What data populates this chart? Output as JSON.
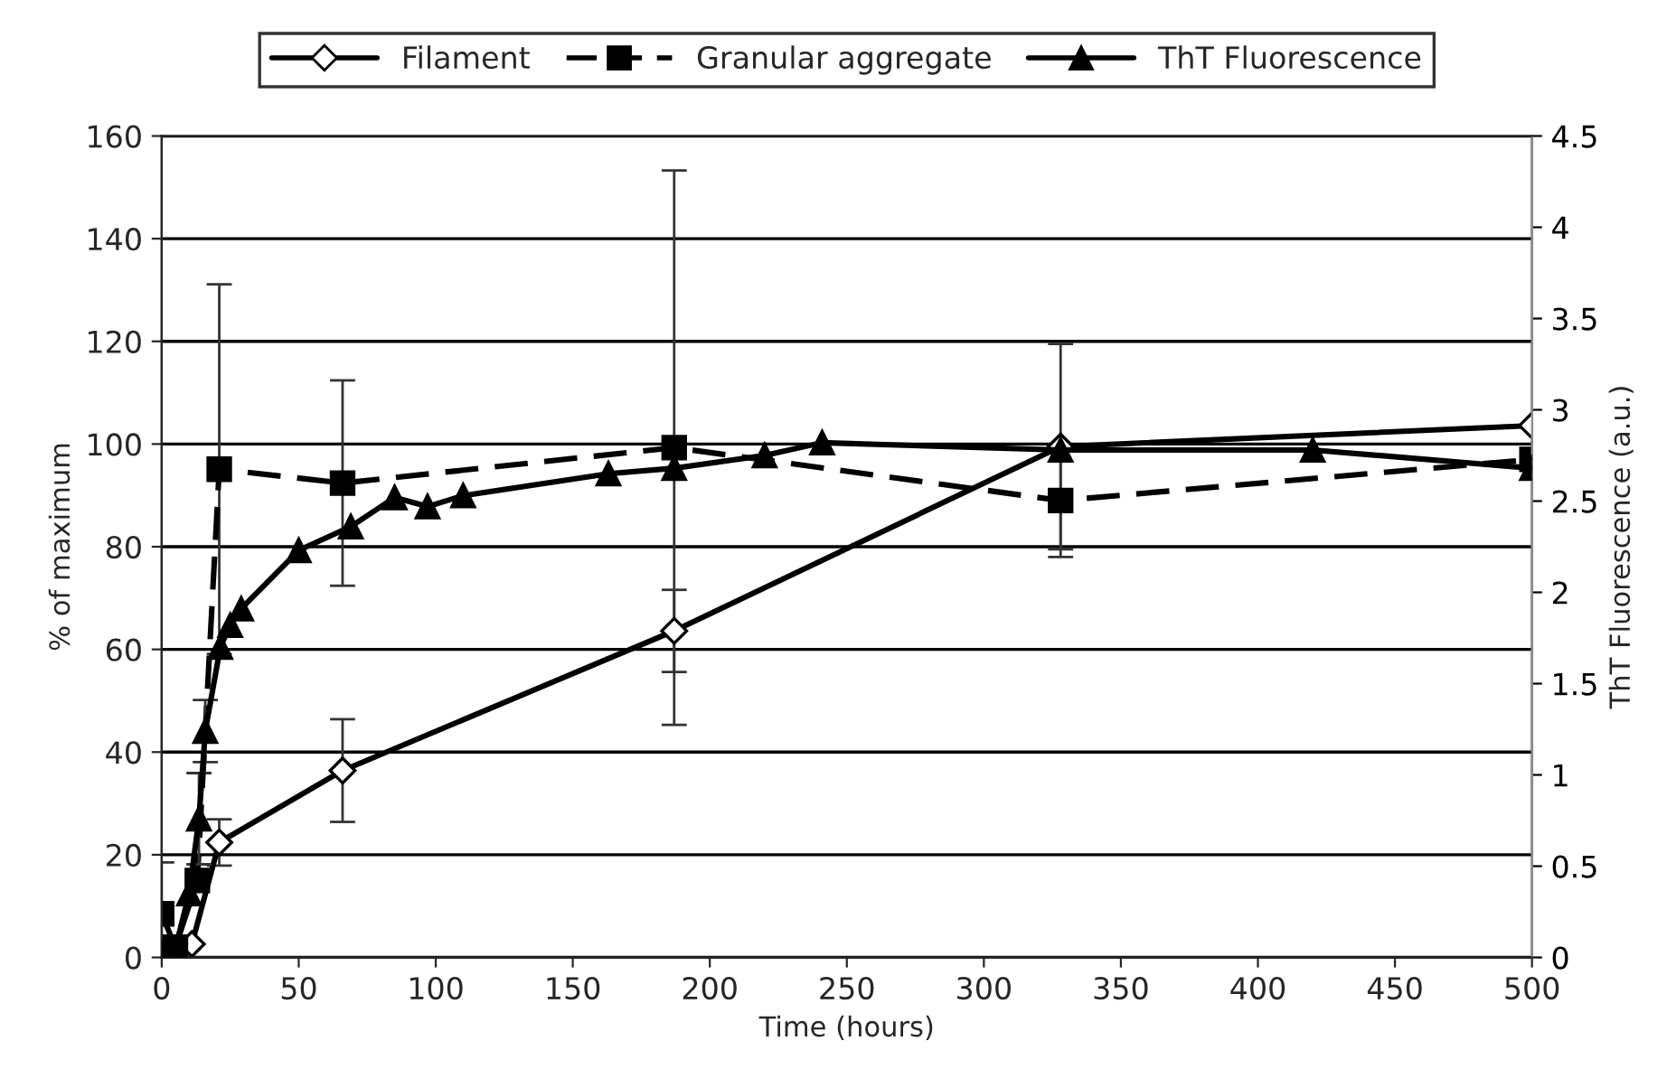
{
  "chart_data": {
    "type": "line",
    "xlabel": "Time (hours)",
    "ylabel": "% of maximum",
    "y2label": "ThT Fluorescence (a.u.)",
    "xlim": [
      0,
      500
    ],
    "xticks": [
      0,
      50,
      100,
      150,
      200,
      250,
      300,
      350,
      400,
      450,
      500
    ],
    "ylim": [
      0,
      160
    ],
    "yticks": [
      0,
      20,
      40,
      60,
      80,
      100,
      120,
      140,
      160
    ],
    "y2lim": [
      0,
      4.5
    ],
    "y2ticks": [
      0,
      0.5,
      1,
      1.5,
      2,
      2.5,
      3,
      3.5,
      4,
      4.5
    ],
    "grid": "y",
    "legend": "top",
    "series": [
      {
        "name": "Filament",
        "color": "#000000",
        "marker": "diamond",
        "line_style": "solid",
        "x": [
          4,
          11,
          21,
          66,
          187,
          328,
          500
        ],
        "values": [
          0.5,
          2.6,
          22.4,
          36.4,
          63.6,
          99.5,
          103.6
        ],
        "errors": [
          null,
          null,
          4.5,
          10,
          8,
          20,
          null
        ]
      },
      {
        "name": "Granular aggregate",
        "color": "#000000",
        "marker": "square",
        "line_style": "dashed",
        "x": [
          0,
          5,
          13,
          21,
          66,
          187,
          328,
          500
        ],
        "values": [
          8.5,
          2,
          15,
          95.1,
          92.4,
          99.3,
          89,
          97
        ],
        "errors": [
          10,
          null,
          null,
          36,
          20,
          54,
          11,
          null
        ]
      },
      {
        "name": "ThT Fluorescence",
        "color": "#000000",
        "marker": "triangle",
        "line_style": "solid",
        "axis": "y2",
        "x": [
          0,
          5,
          10,
          13.6,
          15.9,
          21.4,
          25,
          29,
          50,
          69,
          85,
          97,
          110,
          163,
          187,
          220,
          241,
          328,
          420,
          500
        ],
        "values": [
          0.02,
          0.05,
          0.35,
          0.76,
          1.24,
          1.7,
          1.82,
          1.91,
          2.23,
          2.36,
          2.52,
          2.47,
          2.53,
          2.65,
          2.68,
          2.75,
          2.82,
          2.78,
          2.78,
          2.68
        ],
        "errors": [
          null,
          null,
          null,
          0.25,
          0.17,
          null,
          null,
          null,
          null,
          null,
          null,
          null,
          null,
          null,
          null,
          null,
          null,
          null,
          null,
          null
        ]
      }
    ]
  }
}
